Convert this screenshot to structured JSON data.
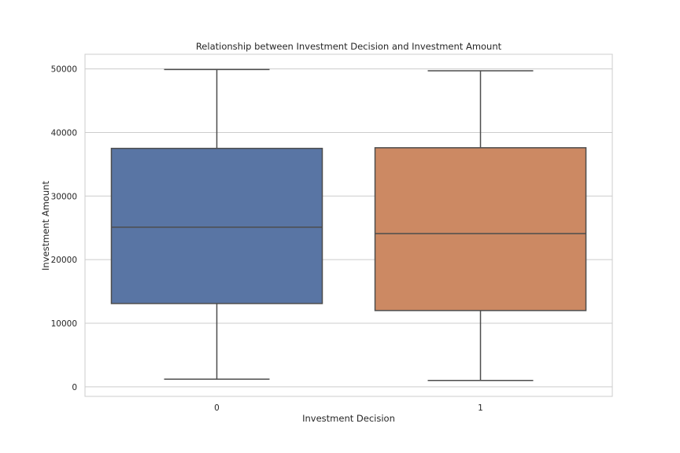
{
  "chart_data": {
    "type": "box",
    "title": "Relationship between Investment Decision and Investment Amount",
    "xlabel": "Investment Decision",
    "ylabel": "Investment Amount",
    "categories": [
      "0",
      "1"
    ],
    "boxes": [
      {
        "category": "0",
        "whisker_low": 1200,
        "q1": 13100,
        "median": 25100,
        "q3": 37500,
        "whisker_high": 49900,
        "color": "#5975a4"
      },
      {
        "category": "1",
        "whisker_low": 1000,
        "q1": 12000,
        "median": 24100,
        "q3": 37600,
        "whisker_high": 49700,
        "color": "#cc8963"
      }
    ],
    "yticks": [
      0,
      10000,
      20000,
      30000,
      40000,
      50000
    ],
    "ylim": [
      -1500,
      52300
    ],
    "grid": true,
    "legend": false
  }
}
